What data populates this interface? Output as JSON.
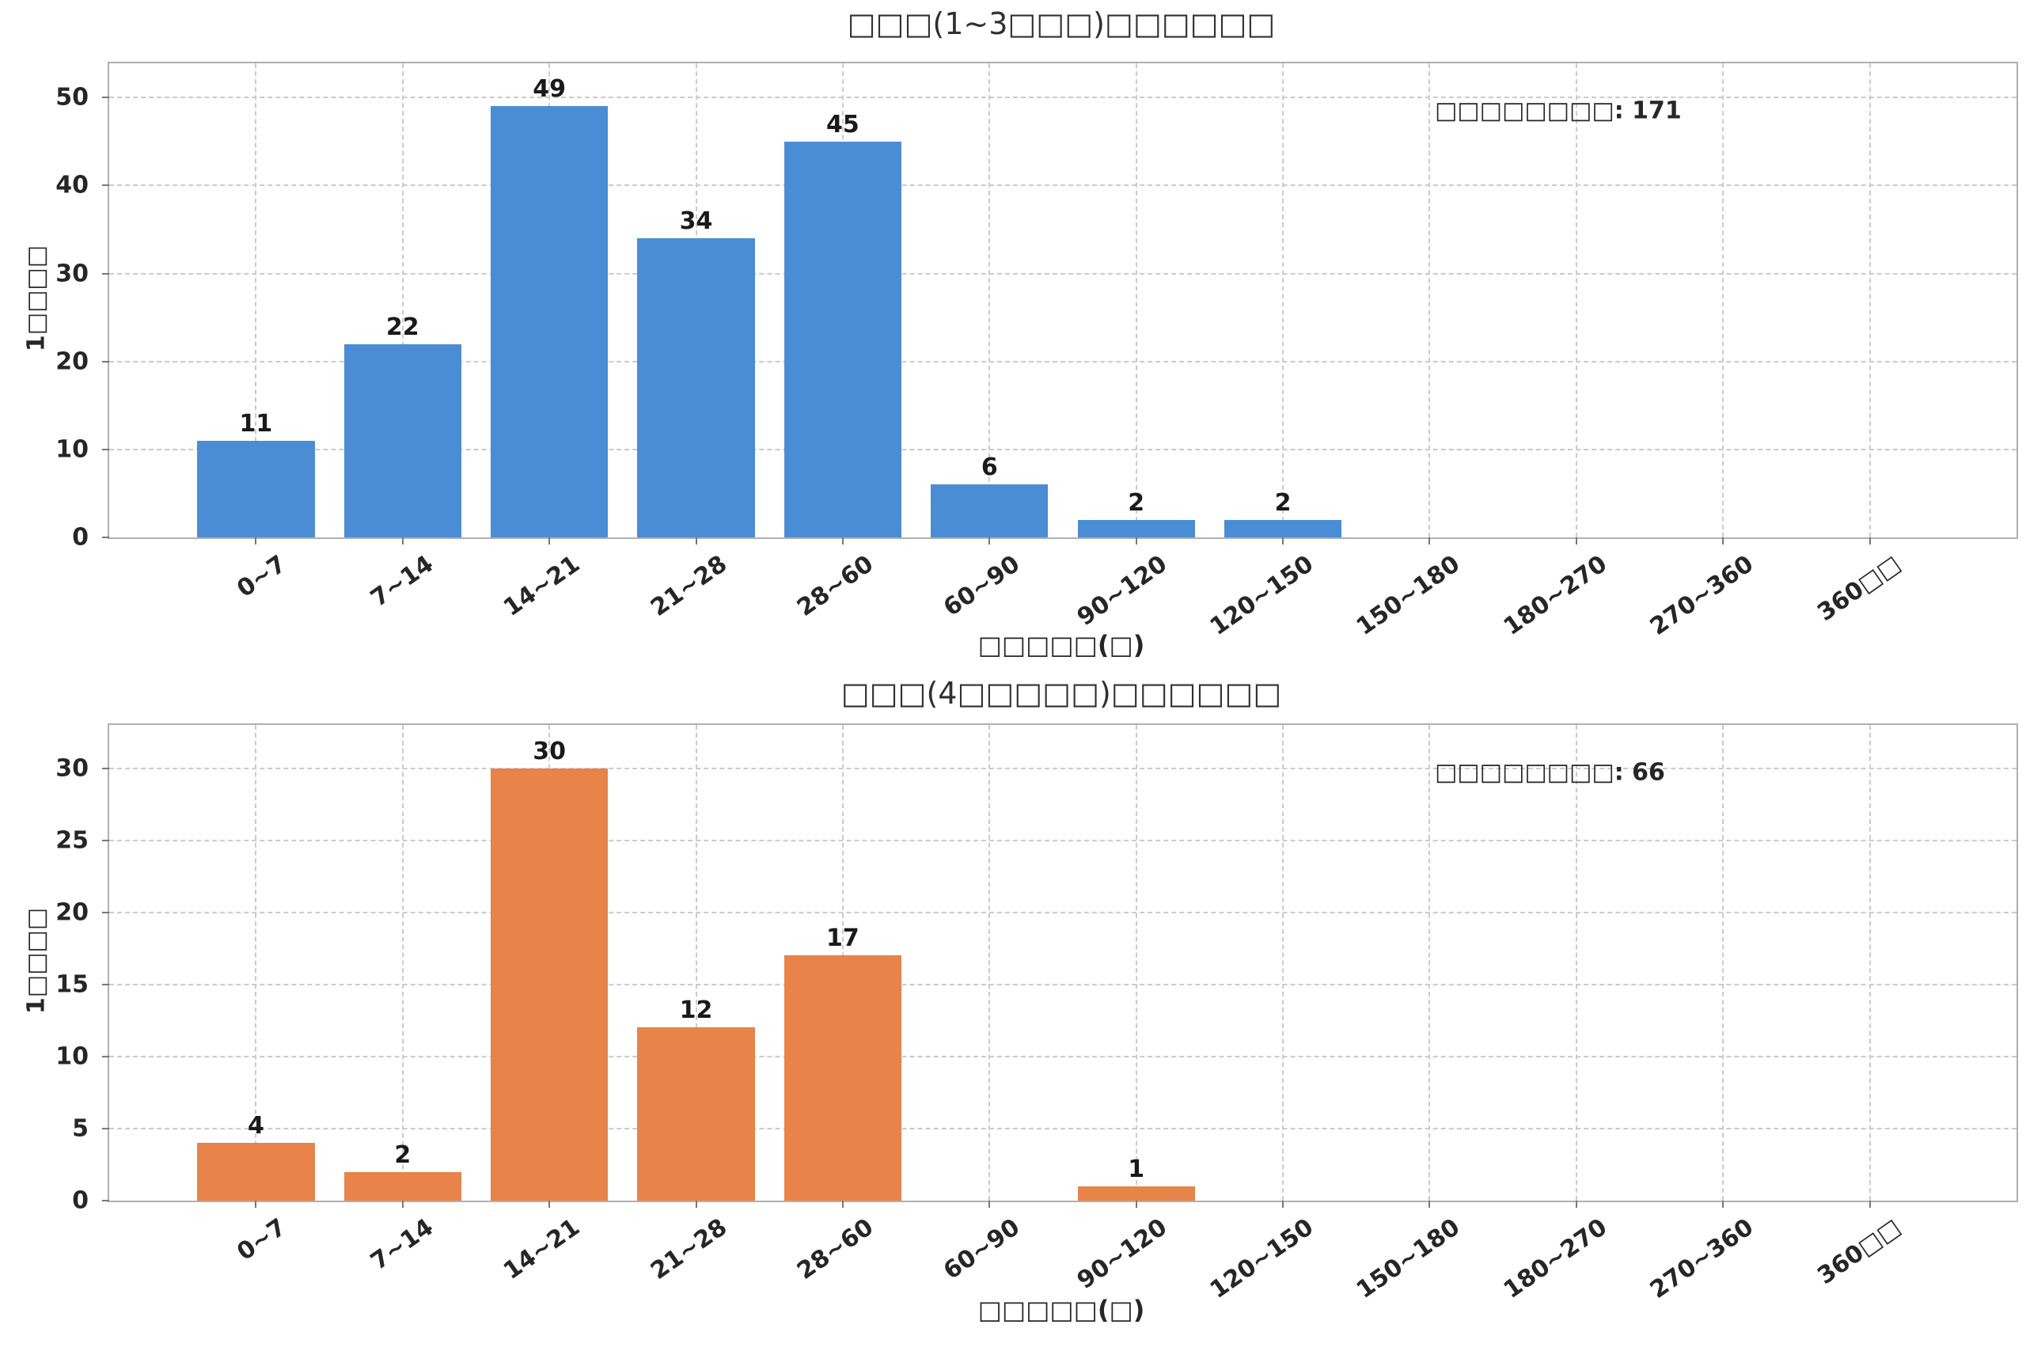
{
  "figure": {
    "background": "#ffffff",
    "grid_color": "#cbcbcb",
    "spine_color": "#b0b0b0",
    "text_color": "#262626"
  },
  "chart_data": [
    {
      "type": "bar",
      "title": "□□□(1~3□□□)□□□□□□",
      "annotation": "□□□□□□□□: 171",
      "total": 171,
      "xlabel": "□□□□□(□)",
      "ylabel": "1□□□□",
      "categories": [
        "0~7",
        "7~14",
        "14~21",
        "21~28",
        "28~60",
        "60~90",
        "90~120",
        "120~150",
        "150~180",
        "180~270",
        "270~360",
        "360□□"
      ],
      "values": [
        11,
        22,
        49,
        34,
        45,
        6,
        2,
        2,
        0,
        0,
        0,
        0
      ],
      "yticks": [
        0,
        10,
        20,
        30,
        40,
        50
      ],
      "ylim": [
        0,
        53.9
      ],
      "bar_color": "#4b8dd4",
      "grid": true,
      "grid_style": "dashed",
      "legend": "none"
    },
    {
      "type": "bar",
      "title": "□□□(4□□□□□)□□□□□□",
      "annotation": "□□□□□□□□: 66",
      "total": 66,
      "xlabel": "□□□□□(□)",
      "ylabel": "1□□□□",
      "categories": [
        "0~7",
        "7~14",
        "14~21",
        "21~28",
        "28~60",
        "60~90",
        "90~120",
        "120~150",
        "150~180",
        "180~270",
        "270~360",
        "360□□"
      ],
      "values": [
        4,
        2,
        30,
        12,
        17,
        0,
        1,
        0,
        0,
        0,
        0,
        0
      ],
      "yticks": [
        0,
        5,
        10,
        15,
        20,
        25,
        30
      ],
      "ylim": [
        0,
        33
      ],
      "bar_color": "#e8834a",
      "grid": true,
      "grid_style": "dashed",
      "legend": "none"
    }
  ]
}
